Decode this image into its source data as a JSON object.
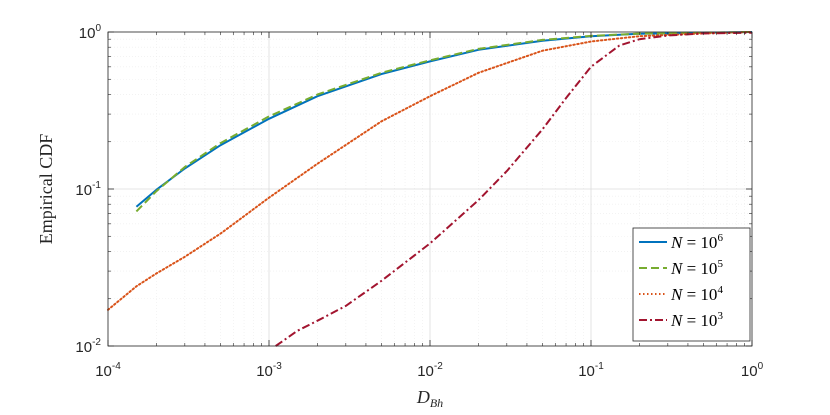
{
  "chart_data": {
    "type": "line",
    "xlabel": {
      "main": "D",
      "sub": "Bh"
    },
    "ylabel": "Empirical CDF",
    "xscale": "log",
    "yscale": "log",
    "xlim": [
      0.0001,
      1
    ],
    "ylim": [
      0.01,
      1
    ],
    "grid": true,
    "minor_grid": true,
    "legend_position": "bottom-right",
    "x_ticks": [
      {
        "base": "10",
        "exp": "-4"
      },
      {
        "base": "10",
        "exp": "-3"
      },
      {
        "base": "10",
        "exp": "-2"
      },
      {
        "base": "10",
        "exp": "-1"
      },
      {
        "base": "10",
        "exp": "0"
      }
    ],
    "y_ticks": [
      {
        "base": "10",
        "exp": "-2"
      },
      {
        "base": "10",
        "exp": "-1"
      },
      {
        "base": "10",
        "exp": "0"
      }
    ],
    "series": [
      {
        "name": "N = 10^6",
        "legend_lhs": "N",
        "legend_rhs": "= 10",
        "legend_exp": "6",
        "color": "#0072BD",
        "dash": "solid",
        "x": [
          0.00015,
          0.0002,
          0.0003,
          0.0005,
          0.001,
          0.002,
          0.005,
          0.01,
          0.02,
          0.05,
          0.1,
          0.2,
          0.5,
          1
        ],
        "y": [
          0.077,
          0.099,
          0.135,
          0.19,
          0.28,
          0.39,
          0.54,
          0.65,
          0.77,
          0.88,
          0.94,
          0.975,
          0.99,
          1.0
        ]
      },
      {
        "name": "N = 10^5",
        "legend_lhs": "N",
        "legend_rhs": "= 10",
        "legend_exp": "5",
        "color": "#77AC30",
        "dash": "dashed",
        "x": [
          0.00015,
          0.0002,
          0.0003,
          0.0005,
          0.001,
          0.002,
          0.005,
          0.01,
          0.02,
          0.05,
          0.1,
          0.2,
          0.5,
          1
        ],
        "y": [
          0.072,
          0.097,
          0.138,
          0.196,
          0.29,
          0.4,
          0.55,
          0.66,
          0.78,
          0.89,
          0.945,
          0.977,
          0.99,
          1.0
        ]
      },
      {
        "name": "N = 10^4",
        "legend_lhs": "N",
        "legend_rhs": "= 10",
        "legend_exp": "4",
        "color": "#D95319",
        "dash": "dotted",
        "x": [
          0.0001,
          0.00015,
          0.0002,
          0.0003,
          0.0005,
          0.001,
          0.002,
          0.005,
          0.01,
          0.02,
          0.05,
          0.1,
          0.2,
          0.5,
          1
        ],
        "y": [
          0.017,
          0.024,
          0.029,
          0.037,
          0.052,
          0.088,
          0.145,
          0.27,
          0.39,
          0.55,
          0.76,
          0.87,
          0.94,
          0.98,
          1.0
        ]
      },
      {
        "name": "N = 10^3",
        "legend_lhs": "N",
        "legend_rhs": "= 10",
        "legend_exp": "3",
        "color": "#A2142F",
        "dash": "dashdot",
        "x": [
          0.0011,
          0.0015,
          0.002,
          0.003,
          0.005,
          0.01,
          0.02,
          0.03,
          0.05,
          0.07,
          0.1,
          0.15,
          0.2,
          0.3,
          0.5,
          1
        ],
        "y": [
          0.01,
          0.0125,
          0.0145,
          0.018,
          0.026,
          0.045,
          0.085,
          0.13,
          0.24,
          0.38,
          0.6,
          0.82,
          0.9,
          0.95,
          0.98,
          0.99
        ]
      }
    ]
  }
}
